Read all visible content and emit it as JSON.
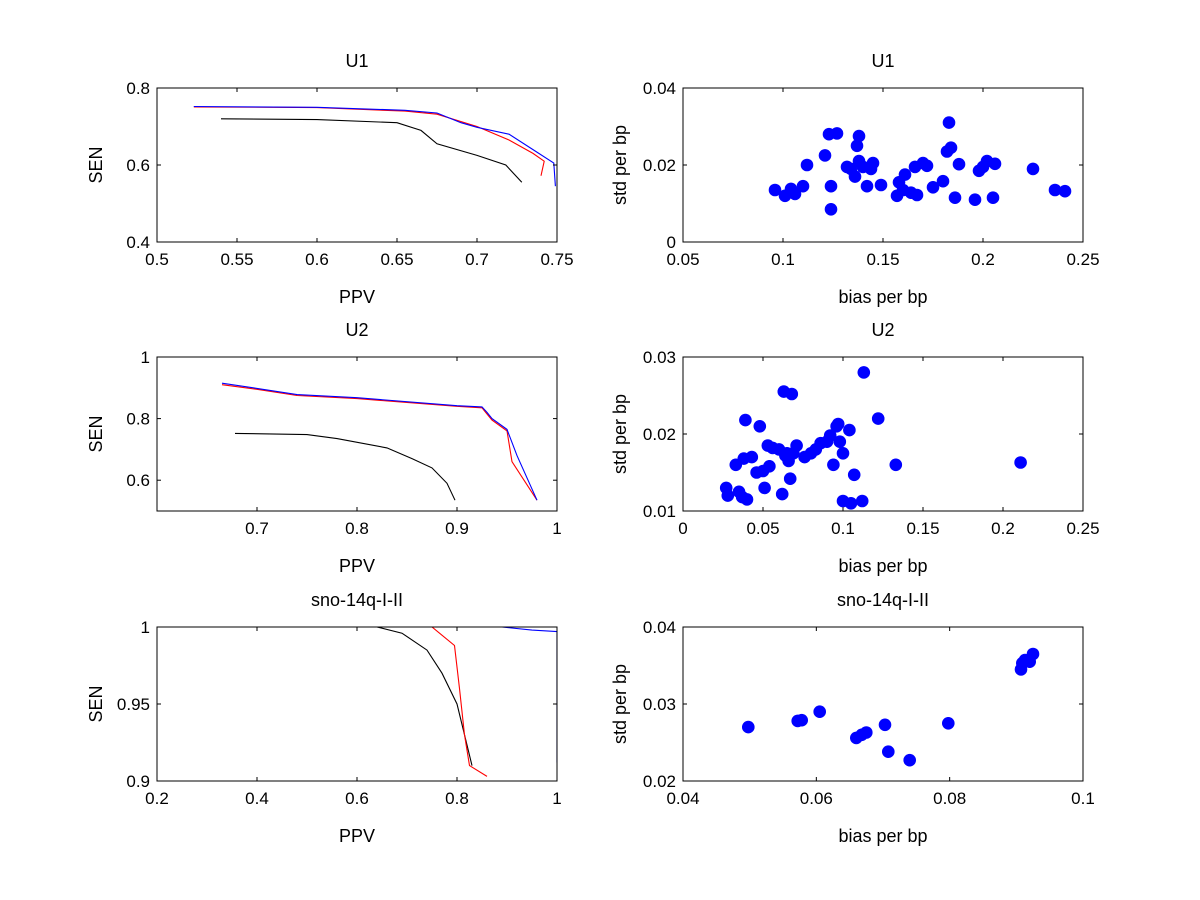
{
  "chart_data": [
    {
      "type": "line",
      "title": "U1",
      "xlabel": "PPV",
      "ylabel": "SEN",
      "xlim": [
        0.5,
        0.75
      ],
      "ylim": [
        0.4,
        0.8
      ],
      "xticks": [
        0.5,
        0.55,
        0.6,
        0.65,
        0.7,
        0.75
      ],
      "yticks": [
        0.4,
        0.6,
        0.8
      ],
      "xtick_labels": [
        "0.5",
        "0.55",
        "0.6",
        "0.65",
        "0.7",
        "0.75"
      ],
      "ytick_labels": [
        "0.4",
        "0.6",
        "0.8"
      ],
      "grid": false,
      "series": [
        {
          "color": "#000000",
          "points": [
            [
              0.54,
              0.72
            ],
            [
              0.6,
              0.718
            ],
            [
              0.65,
              0.71
            ],
            [
              0.665,
              0.69
            ],
            [
              0.675,
              0.655
            ],
            [
              0.7,
              0.625
            ],
            [
              0.718,
              0.6
            ],
            [
              0.728,
              0.555
            ]
          ]
        },
        {
          "color": "#ff0000",
          "points": [
            [
              0.523,
              0.751
            ],
            [
              0.6,
              0.749
            ],
            [
              0.655,
              0.74
            ],
            [
              0.675,
              0.732
            ],
            [
              0.7,
              0.7
            ],
            [
              0.72,
              0.665
            ],
            [
              0.735,
              0.63
            ],
            [
              0.742,
              0.61
            ],
            [
              0.74,
              0.572
            ]
          ]
        },
        {
          "color": "#0000ff",
          "points": [
            [
              0.523,
              0.752
            ],
            [
              0.6,
              0.75
            ],
            [
              0.655,
              0.742
            ],
            [
              0.675,
              0.735
            ],
            [
              0.69,
              0.71
            ],
            [
              0.7,
              0.698
            ],
            [
              0.72,
              0.68
            ],
            [
              0.735,
              0.64
            ],
            [
              0.748,
              0.605
            ],
            [
              0.749,
              0.545
            ]
          ]
        }
      ]
    },
    {
      "type": "scatter",
      "title": "U1",
      "xlabel": "bias per bp",
      "ylabel": "std per bp",
      "xlim": [
        0.05,
        0.25
      ],
      "ylim": [
        0,
        0.04
      ],
      "xticks": [
        0.05,
        0.1,
        0.15,
        0.2,
        0.25
      ],
      "yticks": [
        0,
        0.02,
        0.04
      ],
      "xtick_labels": [
        "0.05",
        "0.1",
        "0.15",
        "0.2",
        "0.25"
      ],
      "ytick_labels": [
        "0",
        "0.02",
        "0.04"
      ],
      "grid": false,
      "marker_color": "#0000ff",
      "points": [
        [
          0.096,
          0.0135
        ],
        [
          0.101,
          0.012
        ],
        [
          0.104,
          0.0138
        ],
        [
          0.106,
          0.0125
        ],
        [
          0.11,
          0.0145
        ],
        [
          0.112,
          0.02
        ],
        [
          0.121,
          0.0225
        ],
        [
          0.123,
          0.028
        ],
        [
          0.124,
          0.0085
        ],
        [
          0.124,
          0.0145
        ],
        [
          0.127,
          0.0282
        ],
        [
          0.132,
          0.0195
        ],
        [
          0.134,
          0.019
        ],
        [
          0.136,
          0.017
        ],
        [
          0.137,
          0.025
        ],
        [
          0.138,
          0.0275
        ],
        [
          0.138,
          0.021
        ],
        [
          0.14,
          0.0195
        ],
        [
          0.142,
          0.0145
        ],
        [
          0.144,
          0.019
        ],
        [
          0.145,
          0.0205
        ],
        [
          0.149,
          0.0148
        ],
        [
          0.157,
          0.012
        ],
        [
          0.158,
          0.0155
        ],
        [
          0.16,
          0.0135
        ],
        [
          0.161,
          0.0175
        ],
        [
          0.164,
          0.0128
        ],
        [
          0.166,
          0.0195
        ],
        [
          0.167,
          0.0122
        ],
        [
          0.17,
          0.0205
        ],
        [
          0.172,
          0.0198
        ],
        [
          0.175,
          0.0142
        ],
        [
          0.18,
          0.0158
        ],
        [
          0.182,
          0.0235
        ],
        [
          0.183,
          0.031
        ],
        [
          0.184,
          0.0245
        ],
        [
          0.186,
          0.0115
        ],
        [
          0.188,
          0.0202
        ],
        [
          0.196,
          0.011
        ],
        [
          0.198,
          0.0185
        ],
        [
          0.2,
          0.0195
        ],
        [
          0.202,
          0.021
        ],
        [
          0.205,
          0.0115
        ],
        [
          0.206,
          0.0203
        ],
        [
          0.225,
          0.019
        ],
        [
          0.236,
          0.0135
        ],
        [
          0.241,
          0.0132
        ]
      ]
    },
    {
      "type": "line",
      "title": "U2",
      "xlabel": "PPV",
      "ylabel": "SEN",
      "xlim": [
        0.6,
        1.0
      ],
      "ylim": [
        0.5,
        1.0
      ],
      "xticks": [
        0.7,
        0.8,
        0.9,
        1.0
      ],
      "yticks": [
        0.6,
        0.8,
        1.0
      ],
      "xtick_labels": [
        "0.7",
        "0.8",
        "0.9",
        "1"
      ],
      "ytick_labels": [
        "0.6",
        "0.8",
        "1"
      ],
      "grid": false,
      "series": [
        {
          "color": "#000000",
          "points": [
            [
              0.678,
              0.752
            ],
            [
              0.75,
              0.748
            ],
            [
              0.78,
              0.735
            ],
            [
              0.83,
              0.705
            ],
            [
              0.855,
              0.67
            ],
            [
              0.875,
              0.64
            ],
            [
              0.89,
              0.59
            ],
            [
              0.898,
              0.535
            ]
          ]
        },
        {
          "color": "#ff0000",
          "points": [
            [
              0.665,
              0.91
            ],
            [
              0.7,
              0.895
            ],
            [
              0.74,
              0.875
            ],
            [
              0.8,
              0.865
            ],
            [
              0.9,
              0.84
            ],
            [
              0.925,
              0.835
            ],
            [
              0.93,
              0.815
            ],
            [
              0.935,
              0.795
            ],
            [
              0.95,
              0.76
            ],
            [
              0.955,
              0.66
            ],
            [
              0.98,
              0.535
            ]
          ]
        },
        {
          "color": "#0000ff",
          "points": [
            [
              0.665,
              0.915
            ],
            [
              0.7,
              0.898
            ],
            [
              0.74,
              0.878
            ],
            [
              0.8,
              0.868
            ],
            [
              0.9,
              0.842
            ],
            [
              0.925,
              0.838
            ],
            [
              0.93,
              0.82
            ],
            [
              0.935,
              0.8
            ],
            [
              0.95,
              0.765
            ],
            [
              0.96,
              0.68
            ],
            [
              0.98,
              0.535
            ]
          ]
        }
      ]
    },
    {
      "type": "scatter",
      "title": "U2",
      "xlabel": "bias per bp",
      "ylabel": "std per bp",
      "xlim": [
        0,
        0.25
      ],
      "ylim": [
        0.01,
        0.03
      ],
      "xticks": [
        0,
        0.05,
        0.1,
        0.15,
        0.2,
        0.25
      ],
      "yticks": [
        0.01,
        0.02,
        0.03
      ],
      "xtick_labels": [
        "0",
        "0.05",
        "0.1",
        "0.15",
        "0.2",
        "0.25"
      ],
      "ytick_labels": [
        "0.01",
        "0.02",
        "0.03"
      ],
      "grid": false,
      "marker_color": "#0000ff",
      "points": [
        [
          0.027,
          0.013
        ],
        [
          0.028,
          0.012
        ],
        [
          0.033,
          0.016
        ],
        [
          0.035,
          0.0125
        ],
        [
          0.037,
          0.0118
        ],
        [
          0.038,
          0.0168
        ],
        [
          0.039,
          0.0218
        ],
        [
          0.04,
          0.0115
        ],
        [
          0.043,
          0.017
        ],
        [
          0.046,
          0.015
        ],
        [
          0.048,
          0.021
        ],
        [
          0.05,
          0.0152
        ],
        [
          0.051,
          0.013
        ],
        [
          0.053,
          0.0185
        ],
        [
          0.054,
          0.0158
        ],
        [
          0.056,
          0.0182
        ],
        [
          0.06,
          0.018
        ],
        [
          0.062,
          0.0122
        ],
        [
          0.063,
          0.0255
        ],
        [
          0.064,
          0.0172
        ],
        [
          0.065,
          0.0175
        ],
        [
          0.066,
          0.0165
        ],
        [
          0.067,
          0.0142
        ],
        [
          0.068,
          0.0252
        ],
        [
          0.069,
          0.0175
        ],
        [
          0.071,
          0.0185
        ],
        [
          0.076,
          0.017
        ],
        [
          0.08,
          0.0175
        ],
        [
          0.083,
          0.018
        ],
        [
          0.086,
          0.0188
        ],
        [
          0.09,
          0.019
        ],
        [
          0.092,
          0.0198
        ],
        [
          0.094,
          0.016
        ],
        [
          0.096,
          0.021
        ],
        [
          0.097,
          0.0213
        ],
        [
          0.098,
          0.019
        ],
        [
          0.1,
          0.0113
        ],
        [
          0.1,
          0.0175
        ],
        [
          0.104,
          0.0205
        ],
        [
          0.105,
          0.011
        ],
        [
          0.107,
          0.0147
        ],
        [
          0.112,
          0.0113
        ],
        [
          0.113,
          0.028
        ],
        [
          0.122,
          0.022
        ],
        [
          0.133,
          0.016
        ],
        [
          0.211,
          0.0163
        ]
      ]
    },
    {
      "type": "line",
      "title": "sno-14q-I-II",
      "xlabel": "PPV",
      "ylabel": "SEN",
      "xlim": [
        0.2,
        1.0
      ],
      "ylim": [
        0.9,
        1.0
      ],
      "xticks": [
        0.2,
        0.4,
        0.6,
        0.8,
        1.0
      ],
      "yticks": [
        0.9,
        0.95,
        1.0
      ],
      "xtick_labels": [
        "0.2",
        "0.4",
        "0.6",
        "0.8",
        "1"
      ],
      "ytick_labels": [
        "0.9",
        "0.95",
        "1"
      ],
      "grid": false,
      "series": [
        {
          "color": "#000000",
          "points": [
            [
              0.2,
              1.0
            ],
            [
              0.64,
              1.0
            ],
            [
              0.69,
              0.996
            ],
            [
              0.74,
              0.985
            ],
            [
              0.77,
              0.97
            ],
            [
              0.8,
              0.95
            ],
            [
              0.815,
              0.93
            ],
            [
              0.83,
              0.91
            ]
          ]
        },
        {
          "color": "#ff0000",
          "points": [
            [
              0.2,
              1.0
            ],
            [
              0.64,
              1.0
            ],
            [
              0.75,
              1.0
            ],
            [
              0.795,
              0.988
            ],
            [
              0.805,
              0.96
            ],
            [
              0.815,
              0.93
            ],
            [
              0.825,
              0.91
            ],
            [
              0.86,
              0.903
            ]
          ]
        },
        {
          "color": "#0000ff",
          "points": [
            [
              0.2,
              1.0
            ],
            [
              0.89,
              1.0
            ],
            [
              0.95,
              0.998
            ],
            [
              1.0,
              0.997
            ],
            [
              1.0,
              0.912
            ]
          ]
        }
      ]
    },
    {
      "type": "scatter",
      "title": "sno-14q-I-II",
      "xlabel": "bias per bp",
      "ylabel": "std per bp",
      "xlim": [
        0.04,
        0.1
      ],
      "ylim": [
        0.02,
        0.04
      ],
      "xticks": [
        0.04,
        0.06,
        0.08,
        0.1
      ],
      "yticks": [
        0.02,
        0.03,
        0.04
      ],
      "xtick_labels": [
        "0.04",
        "0.06",
        "0.08",
        "0.1"
      ],
      "ytick_labels": [
        "0.02",
        "0.03",
        "0.04"
      ],
      "grid": false,
      "marker_color": "#0000ff",
      "points": [
        [
          0.0498,
          0.027
        ],
        [
          0.0572,
          0.0278
        ],
        [
          0.0578,
          0.0279
        ],
        [
          0.0605,
          0.029
        ],
        [
          0.066,
          0.0256
        ],
        [
          0.0668,
          0.026
        ],
        [
          0.0675,
          0.0263
        ],
        [
          0.0703,
          0.0273
        ],
        [
          0.0708,
          0.0238
        ],
        [
          0.074,
          0.0227
        ],
        [
          0.0798,
          0.0275
        ],
        [
          0.0907,
          0.0345
        ],
        [
          0.0909,
          0.0353
        ],
        [
          0.0913,
          0.0357
        ],
        [
          0.092,
          0.0355
        ],
        [
          0.0925,
          0.0365
        ]
      ]
    }
  ]
}
